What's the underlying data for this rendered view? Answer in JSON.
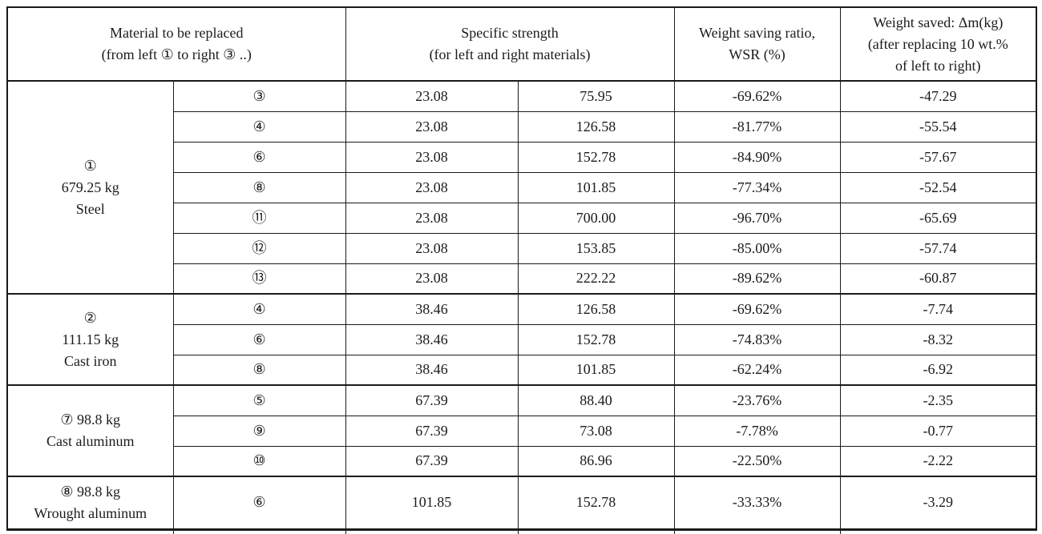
{
  "header": {
    "col_material": [
      "Material to be replaced",
      "(from left ① to right ③ ..)"
    ],
    "col_specific_strength": [
      "Specific strength",
      "(for left and right materials)"
    ],
    "col_wsr": [
      "Weight saving ratio,",
      "WSR (%)"
    ],
    "col_weight_saved": [
      "Weight saved: Δm(kg)",
      "(after replacing 10 wt.%",
      "of left to right)"
    ]
  },
  "groups": [
    {
      "label_lines": [
        "①",
        "679.25 kg",
        "Steel"
      ],
      "rows": [
        {
          "target": "③",
          "ss_left": "23.08",
          "ss_right": "75.95",
          "wsr": "-69.62%",
          "dm": "-47.29"
        },
        {
          "target": "④",
          "ss_left": "23.08",
          "ss_right": "126.58",
          "wsr": "-81.77%",
          "dm": "-55.54"
        },
        {
          "target": "⑥",
          "ss_left": "23.08",
          "ss_right": "152.78",
          "wsr": "-84.90%",
          "dm": "-57.67"
        },
        {
          "target": "⑧",
          "ss_left": "23.08",
          "ss_right": "101.85",
          "wsr": "-77.34%",
          "dm": "-52.54"
        },
        {
          "target": "⑪",
          "ss_left": "23.08",
          "ss_right": "700.00",
          "wsr": "-96.70%",
          "dm": "-65.69"
        },
        {
          "target": "⑫",
          "ss_left": "23.08",
          "ss_right": "153.85",
          "wsr": "-85.00%",
          "dm": "-57.74"
        },
        {
          "target": "⑬",
          "ss_left": "23.08",
          "ss_right": "222.22",
          "wsr": "-89.62%",
          "dm": "-60.87"
        }
      ]
    },
    {
      "label_lines": [
        "②",
        "111.15 kg",
        "Cast iron"
      ],
      "rows": [
        {
          "target": "④",
          "ss_left": "38.46",
          "ss_right": "126.58",
          "wsr": "-69.62%",
          "dm": "-7.74"
        },
        {
          "target": "⑥",
          "ss_left": "38.46",
          "ss_right": "152.78",
          "wsr": "-74.83%",
          "dm": "-8.32"
        },
        {
          "target": "⑧",
          "ss_left": "38.46",
          "ss_right": "101.85",
          "wsr": "-62.24%",
          "dm": "-6.92"
        }
      ]
    },
    {
      "label_lines": [
        "⑦ 98.8 kg",
        "Cast aluminum"
      ],
      "rows": [
        {
          "target": "⑤",
          "ss_left": "67.39",
          "ss_right": "88.40",
          "wsr": "-23.76%",
          "dm": "-2.35"
        },
        {
          "target": "⑨",
          "ss_left": "67.39",
          "ss_right": "73.08",
          "wsr": "-7.78%",
          "dm": "-0.77"
        },
        {
          "target": "⑩",
          "ss_left": "67.39",
          "ss_right": "86.96",
          "wsr": "-22.50%",
          "dm": "-2.22"
        }
      ]
    },
    {
      "label_lines": [
        "⑧ 98.8 kg",
        "Wrought aluminum"
      ],
      "rows": [
        {
          "target": "⑥",
          "ss_left": "101.85",
          "ss_right": "152.78",
          "wsr": "-33.33%",
          "dm": "-3.29"
        }
      ]
    }
  ]
}
